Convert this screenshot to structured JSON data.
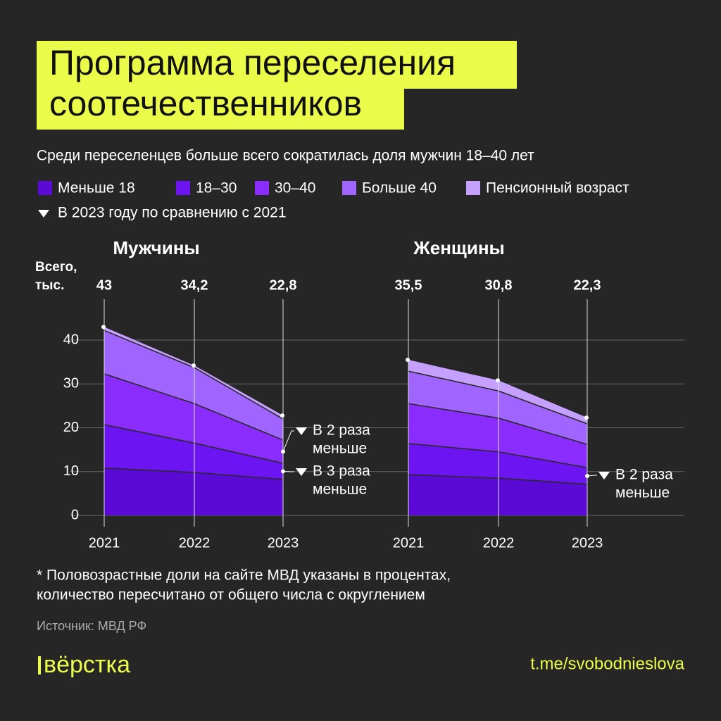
{
  "header": {
    "title_lines": [
      "Программа переселения",
      "соотечественников"
    ],
    "subtitle": "Среди переселенцев больше всего сократилась доля мужчин 18–40 лет",
    "legend_note": "В 2023 году по сравнению с 2021"
  },
  "chart_data": [
    {
      "type": "area",
      "stacked": true,
      "title": "Мужчины",
      "totals_heading": [
        "Всего,",
        "тыс."
      ],
      "categories": [
        "2021",
        "2022",
        "2023"
      ],
      "series": [
        {
          "name": "Меньше 18",
          "color": "#5b0ad6",
          "values": [
            10.8,
            9.8,
            8.2
          ]
        },
        {
          "name": "18–30",
          "color": "#6d14f2",
          "values": [
            9.9,
            6.7,
            3.7
          ]
        },
        {
          "name": "30–40",
          "color": "#8a2dfc",
          "values": [
            11.6,
            9.0,
            5.3
          ]
        },
        {
          "name": "Больше 40",
          "color": "#a064ff",
          "values": [
            9.9,
            8.2,
            4.8
          ]
        },
        {
          "name": "Пенсионный возраст",
          "color": "#c5a0ff",
          "values": [
            0.8,
            0.5,
            0.8
          ]
        }
      ],
      "totals": {
        "values": [
          43,
          34.2,
          22.8
        ],
        "value_labels": [
          "43",
          "34,2",
          "22,8"
        ]
      },
      "annotations": [
        {
          "series": 2,
          "lines": [
            "В 2 раза",
            "меньше"
          ]
        },
        {
          "series": 1,
          "lines": [
            "В 3 раза",
            "меньше"
          ]
        }
      ],
      "ylim": [
        0,
        40
      ],
      "yticks": [
        0,
        10,
        20,
        30,
        40
      ],
      "grid": true
    },
    {
      "type": "area",
      "stacked": true,
      "title": "Женщины",
      "categories": [
        "2021",
        "2022",
        "2023"
      ],
      "series": [
        {
          "name": "Меньше 18",
          "color": "#5b0ad6",
          "values": [
            9.3,
            8.5,
            7.1
          ]
        },
        {
          "name": "18–30",
          "color": "#6d14f2",
          "values": [
            7.1,
            6.0,
            3.8
          ]
        },
        {
          "name": "30–40",
          "color": "#8a2dfc",
          "values": [
            9.1,
            7.7,
            5.3
          ]
        },
        {
          "name": "Больше 40",
          "color": "#a064ff",
          "values": [
            7.4,
            6.2,
            4.7
          ]
        },
        {
          "name": "Пенсионный возраст",
          "color": "#c5a0ff",
          "values": [
            2.6,
            2.4,
            1.4
          ]
        }
      ],
      "totals": {
        "values": [
          35.5,
          30.8,
          22.3
        ],
        "value_labels": [
          "35,5",
          "30,8",
          "22,3"
        ]
      },
      "annotations": [
        {
          "series": 1,
          "lines": [
            "В 2 раза",
            "меньше"
          ]
        }
      ],
      "ylim": [
        0,
        40
      ],
      "yticks": [
        0,
        10,
        20,
        30,
        40
      ],
      "grid": true
    }
  ],
  "footer": {
    "note_lines": [
      "* Половозрастные доли на сайте МВД указаны в процентах,",
      "количество пересчитано от общего числа с округлением"
    ],
    "source": "Источник: МВД РФ",
    "logo": "вёрстка",
    "link": "t.me/svobodnieslova"
  }
}
